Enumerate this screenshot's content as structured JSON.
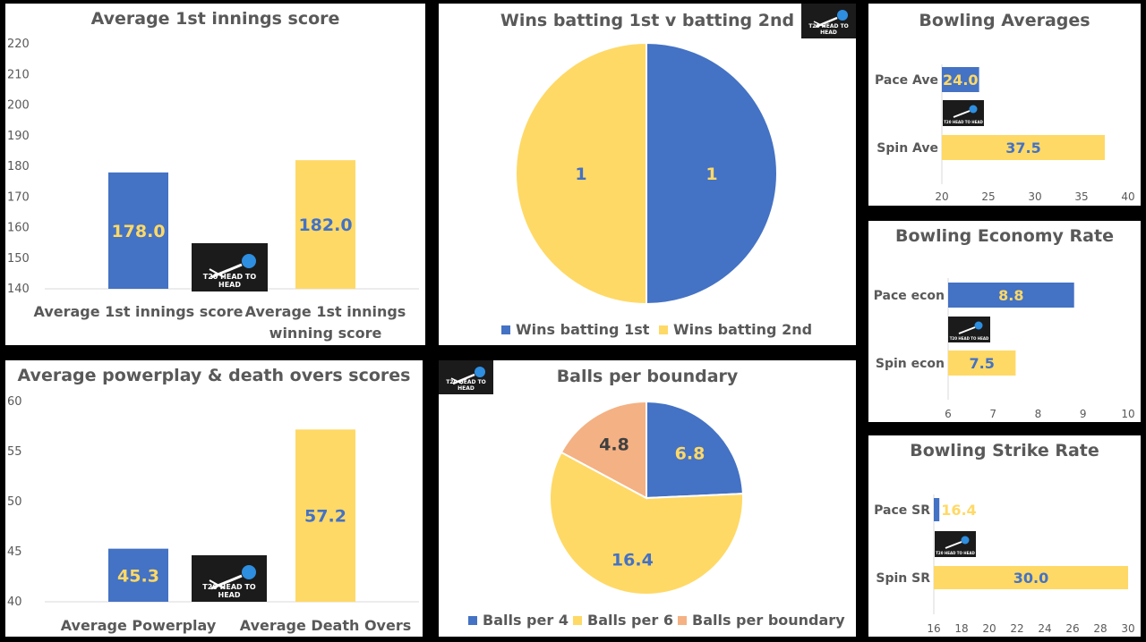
{
  "colors": {
    "blue": "#4472c4",
    "yellow": "#ffd966",
    "peach": "#f4b183",
    "axis": "#d9d9d9",
    "text": "#595959"
  },
  "logo_text": "T20 HEAD TO HEAD",
  "chart_data": [
    {
      "type": "bar",
      "title": "Average 1st innings score",
      "categories": [
        "Average 1st innings score",
        "Average 1st innings winning score"
      ],
      "values": [
        178.0,
        182.0
      ],
      "labels": [
        "178.0",
        "182.0"
      ],
      "colors": [
        "#4472c4",
        "#ffd966"
      ],
      "ylim": [
        140,
        220
      ],
      "yticks": [
        "140",
        "150",
        "160",
        "170",
        "180",
        "190",
        "200",
        "210",
        "220"
      ]
    },
    {
      "type": "pie",
      "title": "Wins batting 1st v batting 2nd",
      "slices": [
        {
          "name": "Wins batting 1st",
          "value": 1,
          "label": "1"
        },
        {
          "name": "Wins batting 2nd",
          "value": 1,
          "label": "1"
        }
      ],
      "colors": [
        "#4472c4",
        "#ffd966"
      ],
      "legend": "bottom"
    },
    {
      "type": "bar",
      "orientation": "horizontal",
      "title": "Bowling Averages",
      "categories": [
        "Pace Ave",
        "Spin Ave"
      ],
      "values": [
        24.0,
        37.5
      ],
      "labels": [
        "24.0",
        "37.5"
      ],
      "colors": [
        "#4472c4",
        "#ffd966"
      ],
      "xlim": [
        20,
        40
      ],
      "xticks": [
        "20",
        "25",
        "30",
        "35",
        "40"
      ]
    },
    {
      "type": "bar",
      "orientation": "horizontal",
      "title": "Bowling Economy Rate",
      "categories": [
        "Pace econ",
        "Spin econ"
      ],
      "values": [
        8.8,
        7.5
      ],
      "labels": [
        "8.8",
        "7.5"
      ],
      "colors": [
        "#4472c4",
        "#ffd966"
      ],
      "xlim": [
        6,
        10
      ],
      "xticks": [
        "6",
        "7",
        "8",
        "9",
        "10"
      ]
    },
    {
      "type": "bar",
      "title": "Average powerplay & death overs scores",
      "categories": [
        "Average Powerplay",
        "Average Death Overs"
      ],
      "values": [
        45.3,
        57.2
      ],
      "labels": [
        "45.3",
        "57.2"
      ],
      "colors": [
        "#4472c4",
        "#ffd966"
      ],
      "ylim": [
        40,
        60
      ],
      "yticks": [
        "40",
        "45",
        "50",
        "55",
        "60"
      ]
    },
    {
      "type": "pie",
      "title": "Balls per boundary",
      "slices": [
        {
          "name": "Balls per 4",
          "value": 6.8,
          "label": "6.8"
        },
        {
          "name": "Balls per 6",
          "value": 16.4,
          "label": "16.4"
        },
        {
          "name": "Balls per boundary",
          "value": 4.8,
          "label": "4.8"
        }
      ],
      "colors": [
        "#4472c4",
        "#ffd966",
        "#f4b183"
      ],
      "legend": "bottom"
    },
    {
      "type": "bar",
      "orientation": "horizontal",
      "title": "Bowling Strike Rate",
      "categories": [
        "Pace SR",
        "Spin SR"
      ],
      "values": [
        16.4,
        30.0
      ],
      "labels": [
        "16.4",
        "30.0"
      ],
      "colors": [
        "#4472c4",
        "#ffd966"
      ],
      "xlim": [
        16,
        30
      ],
      "xticks": [
        "16",
        "18",
        "20",
        "22",
        "24",
        "26",
        "28",
        "30"
      ]
    }
  ]
}
